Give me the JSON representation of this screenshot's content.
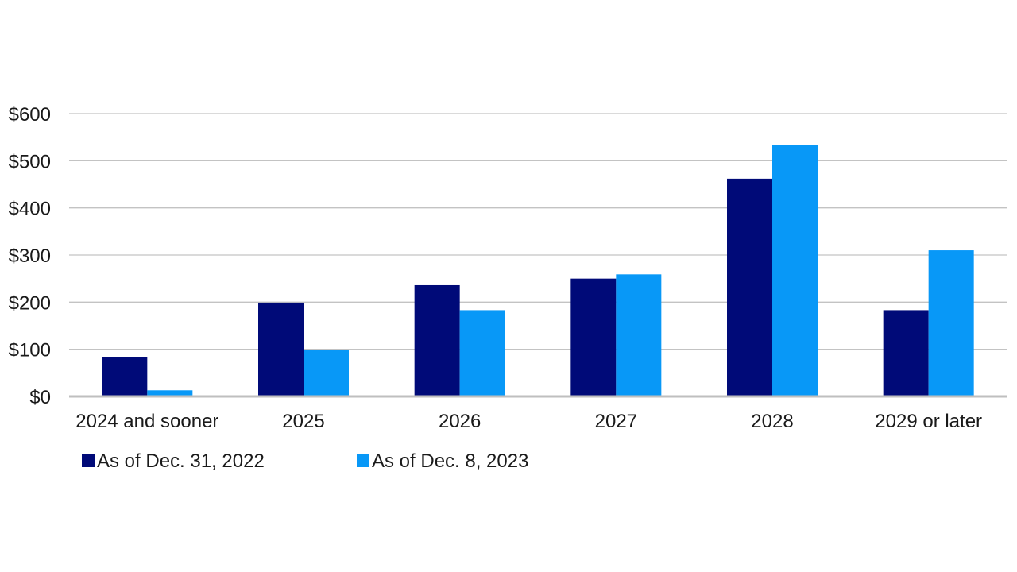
{
  "chart_data": {
    "type": "bar",
    "title": "",
    "xlabel": "",
    "ylabel": "",
    "categories": [
      "2024 and sooner",
      "2025",
      "2026",
      "2027",
      "2028",
      "2029 or later"
    ],
    "series": [
      {
        "name": "As of Dec. 31, 2022",
        "color": "#000a78",
        "values": [
          84,
          199,
          236,
          250,
          462,
          183
        ]
      },
      {
        "name": "As of Dec. 8, 2023",
        "color": "#0898f7",
        "values": [
          13,
          98,
          183,
          259,
          533,
          310
        ]
      }
    ],
    "ylim": [
      0,
      600
    ],
    "yticks": [
      0,
      100,
      200,
      300,
      400,
      500,
      600
    ],
    "ytick_labels": [
      "$0",
      "$100",
      "$200",
      "$300",
      "$400",
      "$500",
      "$600"
    ],
    "grid": true,
    "legend_position": "bottom-left",
    "colors": {
      "gridline": "#c3c3c3",
      "baseline": "#bfbfbf",
      "text": "#1a1a1a"
    }
  }
}
